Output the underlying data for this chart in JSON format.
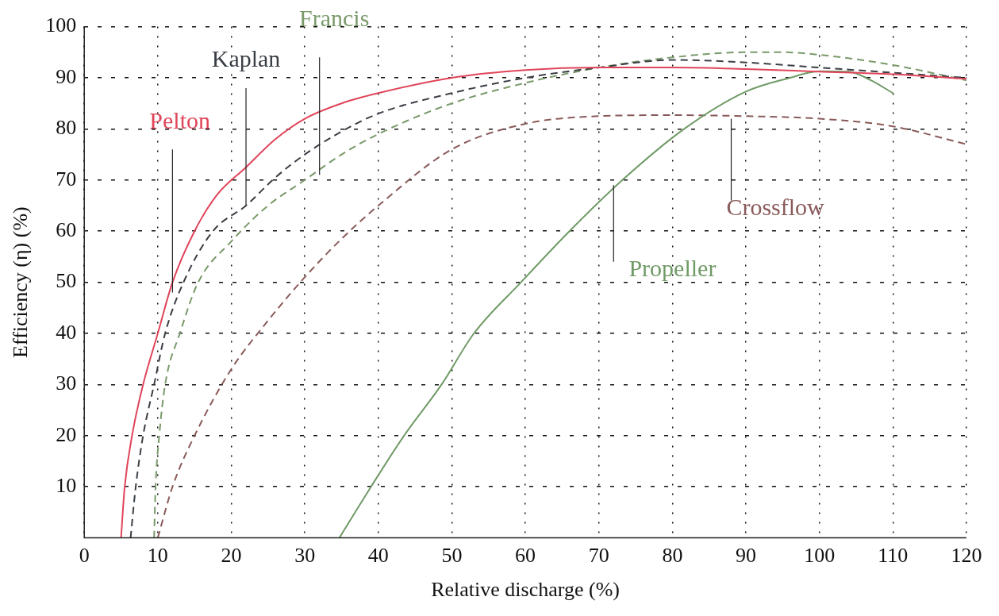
{
  "chart_data": {
    "type": "line",
    "xlabel": "Relative discharge (%)",
    "ylabel": "Efficiency (η) (%)",
    "xlim": [
      0,
      120
    ],
    "ylim": [
      0,
      100
    ],
    "xticks": [
      0,
      10,
      20,
      30,
      40,
      50,
      60,
      70,
      80,
      90,
      100,
      110,
      120
    ],
    "yticks": [
      10,
      20,
      30,
      40,
      50,
      60,
      70,
      80,
      90,
      100
    ],
    "grid": true,
    "legend": false,
    "series": [
      {
        "name": "Pelton",
        "color": "#e0455a",
        "line_style": "solid",
        "x": [
          5,
          5.5,
          6.5,
          8,
          10,
          12,
          15,
          18,
          22,
          26,
          30,
          35,
          40,
          50,
          60,
          70,
          80,
          90,
          100,
          110,
          120
        ],
        "values": [
          0,
          10,
          20,
          30,
          40,
          50,
          60,
          67,
          72.5,
          78,
          82,
          85,
          87,
          90,
          91.5,
          92,
          92,
          91.7,
          91.2,
          90.7,
          89.8
        ]
      },
      {
        "name": "Kaplan",
        "color": "#3a3f45",
        "line_style": "dashed",
        "x": [
          6.3,
          7,
          8,
          9.5,
          11,
          13.5,
          17.5,
          22,
          26,
          30,
          35,
          40,
          50,
          60,
          70,
          80,
          90,
          100,
          110,
          120
        ],
        "values": [
          0,
          10,
          20,
          30,
          40,
          50,
          60,
          65,
          70.5,
          75,
          79.5,
          83,
          87,
          90,
          92,
          93.5,
          93,
          92,
          91,
          90
        ]
      },
      {
        "name": "Francis",
        "color": "#7a9a6a",
        "line_style": "dashed",
        "x": [
          9.5,
          9.7,
          10.2,
          11,
          13,
          15.5,
          20,
          25,
          30,
          35,
          40,
          50,
          60,
          70,
          80,
          90,
          95,
          100,
          110,
          120
        ],
        "values": [
          0,
          10,
          20,
          30,
          40,
          50,
          58,
          65,
          70,
          75,
          79,
          85,
          89,
          92,
          94,
          95,
          95,
          94.5,
          92.5,
          89.5
        ]
      },
      {
        "name": "Propeller",
        "color": "#6f9a66",
        "line_style": "solid",
        "x": [
          34.7,
          39,
          43.5,
          48.6,
          53,
          59.4,
          66,
          73.2,
          81.6,
          90,
          96,
          100,
          104,
          107,
          110
        ],
        "values": [
          0,
          10,
          20,
          30,
          40,
          50,
          60,
          70,
          80,
          87.3,
          90,
          91.3,
          91.2,
          89.5,
          87
        ]
      },
      {
        "name": "Crossflow",
        "color": "#8a5a5a",
        "line_style": "dashed",
        "x": [
          10,
          12,
          15,
          20,
          25,
          30,
          35,
          40,
          50,
          60,
          70,
          80,
          90,
          100,
          110,
          120
        ],
        "values": [
          0,
          10,
          20,
          33,
          42.5,
          51,
          58.5,
          65,
          76,
          81,
          82.5,
          82.7,
          82.5,
          82,
          80.5,
          77
        ]
      }
    ]
  }
}
